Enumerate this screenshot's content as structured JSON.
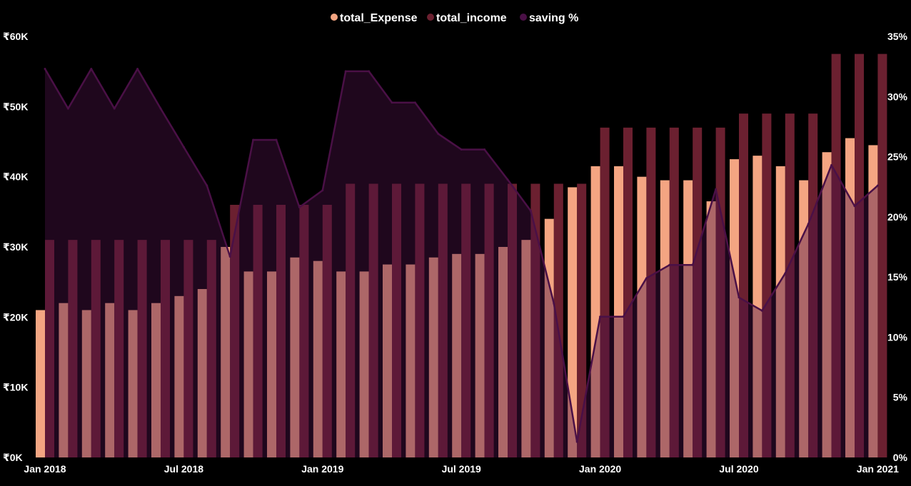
{
  "chart_data": {
    "type": "bar",
    "title": "",
    "xlabel": "",
    "ylabel": "",
    "y2label": "",
    "categories": [
      "2018-01",
      "2018-02",
      "2018-03",
      "2018-04",
      "2018-05",
      "2018-06",
      "2018-07",
      "2018-08",
      "2018-09",
      "2018-10",
      "2018-11",
      "2018-12",
      "2019-01",
      "2019-02",
      "2019-03",
      "2019-04",
      "2019-05",
      "2019-06",
      "2019-07",
      "2019-08",
      "2019-09",
      "2019-10",
      "2019-11",
      "2019-12",
      "2020-01",
      "2020-02",
      "2020-03",
      "2020-04",
      "2020-05",
      "2020-06",
      "2020-07",
      "2020-08",
      "2020-09",
      "2020-10",
      "2020-11",
      "2020-12",
      "2021-01"
    ],
    "x_tick_labels": [
      {
        "label": "Jan 2018",
        "index": 0
      },
      {
        "label": "Jul 2018",
        "index": 6
      },
      {
        "label": "Jan 2019",
        "index": 12
      },
      {
        "label": "Jul 2019",
        "index": 18
      },
      {
        "label": "Jan 2020",
        "index": 24
      },
      {
        "label": "Jul 2020",
        "index": 30
      },
      {
        "label": "Jan 2021",
        "index": 36
      }
    ],
    "legend": {
      "position": "top-center",
      "entries": [
        {
          "name": "total_Expense",
          "color": "#F4A582"
        },
        {
          "name": "total_income",
          "color": "#6B2030"
        },
        {
          "name": "saving %",
          "color": "#4A1046"
        }
      ]
    },
    "series": [
      {
        "name": "total_Expense",
        "type": "bar",
        "axis": "left",
        "color": "#F4A582",
        "values": [
          21000,
          22000,
          21000,
          22000,
          21000,
          22000,
          23000,
          24000,
          30000,
          26500,
          26500,
          28500,
          28000,
          26500,
          26500,
          27500,
          27500,
          28500,
          29000,
          29000,
          30000,
          31000,
          34000,
          38500,
          41500,
          41500,
          40000,
          39500,
          39500,
          36500,
          42500,
          43000,
          41500,
          39500,
          43500,
          45500,
          44500
        ]
      },
      {
        "name": "total_income",
        "type": "bar",
        "axis": "left",
        "color": "#6B2030",
        "values": [
          31000,
          31000,
          31000,
          31000,
          31000,
          31000,
          31000,
          31000,
          36000,
          36000,
          36000,
          36000,
          36000,
          39000,
          39000,
          39000,
          39000,
          39000,
          39000,
          39000,
          39000,
          39000,
          39000,
          39000,
          47000,
          47000,
          47000,
          47000,
          47000,
          47000,
          49000,
          49000,
          49000,
          49000,
          57500,
          57500,
          57500
        ]
      },
      {
        "name": "saving %",
        "type": "area",
        "axis": "right",
        "color": "#4A1046",
        "values": [
          32.3,
          29.0,
          32.3,
          29.0,
          32.3,
          29.0,
          25.8,
          22.6,
          16.7,
          26.4,
          26.4,
          20.8,
          22.2,
          32.1,
          32.1,
          29.5,
          29.5,
          26.9,
          25.6,
          25.6,
          23.1,
          20.5,
          12.8,
          1.3,
          11.7,
          11.7,
          14.9,
          16.0,
          16.0,
          22.3,
          13.3,
          12.2,
          15.3,
          19.4,
          24.3,
          20.9,
          22.6
        ]
      }
    ],
    "ylim": [
      0,
      60000
    ],
    "y2lim": [
      0,
      35
    ],
    "yticks": [
      {
        "value": 0,
        "label": "₹0K"
      },
      {
        "value": 10000,
        "label": "₹10K"
      },
      {
        "value": 20000,
        "label": "₹20K"
      },
      {
        "value": 30000,
        "label": "₹30K"
      },
      {
        "value": 40000,
        "label": "₹40K"
      },
      {
        "value": 50000,
        "label": "₹50K"
      },
      {
        "value": 60000,
        "label": "₹60K"
      }
    ],
    "y2ticks": [
      {
        "value": 0,
        "label": "0%"
      },
      {
        "value": 5,
        "label": "5%"
      },
      {
        "value": 10,
        "label": "10%"
      },
      {
        "value": 15,
        "label": "15%"
      },
      {
        "value": 20,
        "label": "20%"
      },
      {
        "value": 25,
        "label": "25%"
      },
      {
        "value": 30,
        "label": "30%"
      },
      {
        "value": 35,
        "label": "35%"
      }
    ],
    "grid": false,
    "background": "#000000",
    "text_color": "#FFFFFF"
  }
}
